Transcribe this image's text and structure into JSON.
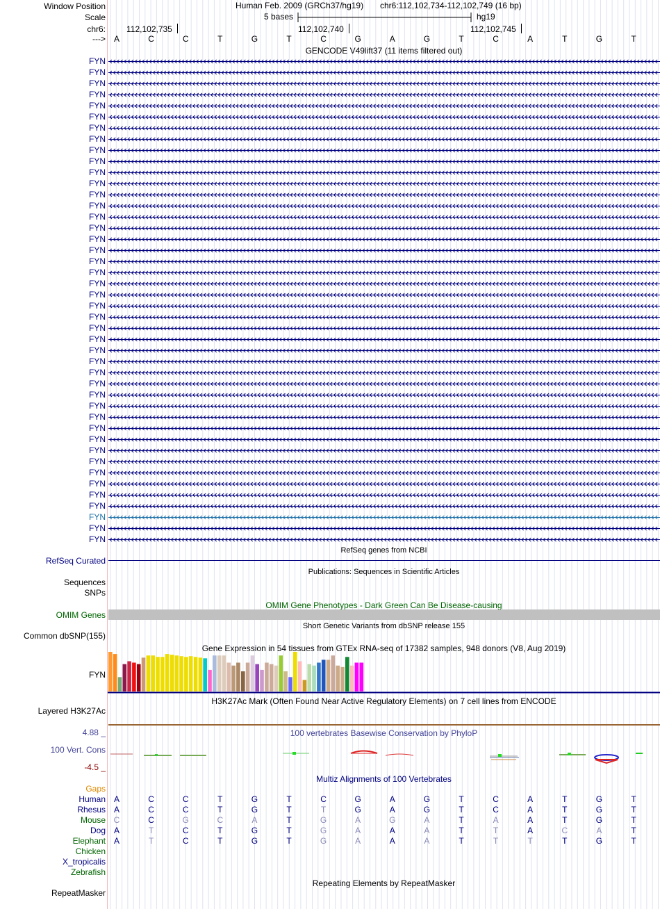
{
  "header": {
    "window_position_label": "Window Position",
    "scale_label": "Scale",
    "chrom_label": "chr6:",
    "strand_label": "--->",
    "assembly": "Human Feb. 2009 (GRCh37/hg19)",
    "position": "chr6:112,102,734-112,102,749 (16 bp)",
    "scale_text": "5 bases",
    "db": "hg19",
    "coords": [
      "112,102,735",
      "112,102,740",
      "112,102,745"
    ]
  },
  "sequence": [
    "A",
    "C",
    "C",
    "T",
    "G",
    "T",
    "C",
    "G",
    "A",
    "G",
    "T",
    "C",
    "A",
    "T",
    "G",
    "T"
  ],
  "gencode": {
    "title": "GENCODE V49lift37 (11 items filtered out)",
    "gene_label": "FYN",
    "count": 44,
    "highlight_index": 41
  },
  "refseq": {
    "title": "RefSeq genes from NCBI",
    "label": "RefSeq Curated"
  },
  "publications": {
    "title": "Publications: Sequences in Scientific Articles",
    "labels": [
      "Sequences",
      "SNPs"
    ]
  },
  "omim": {
    "title": "OMIM Gene Phenotypes - Dark Green Can Be Disease-causing",
    "label": "OMIM Genes",
    "bar_color": "#c0c0c0"
  },
  "snp": {
    "title": "Short Genetic Variants from dbSNP release 155",
    "label": "Common dbSNP(155)"
  },
  "gtex": {
    "title": "Gene Expression in 54 tissues from GTEx RNA-seq of 17382 samples, 948 donors (V8, Aug 2019)",
    "label": "FYN",
    "bars": [
      {
        "v": 55,
        "c": "#ff9933"
      },
      {
        "v": 52,
        "c": "#ff8c1a"
      },
      {
        "v": 20,
        "c": "#77aa77"
      },
      {
        "v": 38,
        "c": "#8b1a4a"
      },
      {
        "v": 42,
        "c": "#cc2244"
      },
      {
        "v": 40,
        "c": "#ee1111"
      },
      {
        "v": 38,
        "c": "#990011"
      },
      {
        "v": 47,
        "c": "#cc9977"
      },
      {
        "v": 50,
        "c": "#eedd00"
      },
      {
        "v": 50,
        "c": "#eedd00"
      },
      {
        "v": 48,
        "c": "#eedd00"
      },
      {
        "v": 48,
        "c": "#eedd00"
      },
      {
        "v": 52,
        "c": "#eedd00"
      },
      {
        "v": 51,
        "c": "#eedd00"
      },
      {
        "v": 50,
        "c": "#eedd00"
      },
      {
        "v": 49,
        "c": "#eedd00"
      },
      {
        "v": 48,
        "c": "#eedd00"
      },
      {
        "v": 49,
        "c": "#eedd00"
      },
      {
        "v": 48,
        "c": "#eedd00"
      },
      {
        "v": 47,
        "c": "#eedd00"
      },
      {
        "v": 46,
        "c": "#00cccc"
      },
      {
        "v": 30,
        "c": "#ff66cc"
      },
      {
        "v": 50,
        "c": "#aabbdd"
      },
      {
        "v": 50,
        "c": "#ddccbb"
      },
      {
        "v": 50,
        "c": "#ddccbb"
      },
      {
        "v": 40,
        "c": "#ddbbaa"
      },
      {
        "v": 36,
        "c": "#bb9977"
      },
      {
        "v": 40,
        "c": "#aa8866"
      },
      {
        "v": 28,
        "c": "#886644"
      },
      {
        "v": 40,
        "c": "#ccaa99"
      },
      {
        "v": 50,
        "c": "#ddccdd"
      },
      {
        "v": 38,
        "c": "#9944bb"
      },
      {
        "v": 30,
        "c": "#cc99cc"
      },
      {
        "v": 40,
        "c": "#ccaa99"
      },
      {
        "v": 38,
        "c": "#ccaa99"
      },
      {
        "v": 36,
        "c": "#ddccbb"
      },
      {
        "v": 50,
        "c": "#99cc33"
      },
      {
        "v": 28,
        "c": "#ccbb88"
      },
      {
        "v": 20,
        "c": "#6666ff"
      },
      {
        "v": 55,
        "c": "#eedd00"
      },
      {
        "v": 42,
        "c": "#ffbbbb"
      },
      {
        "v": 16,
        "c": "#cc9922"
      },
      {
        "v": 38,
        "c": "#bbddaa"
      },
      {
        "v": 36,
        "c": "#aaddbb"
      },
      {
        "v": 40,
        "c": "#3377cc"
      },
      {
        "v": 44,
        "c": "#2255bb"
      },
      {
        "v": 44,
        "c": "#ccaa88"
      },
      {
        "v": 50,
        "c": "#ccaa99"
      },
      {
        "v": 36,
        "c": "#ccaa88"
      },
      {
        "v": 34,
        "c": "#ccaa88"
      },
      {
        "v": 48,
        "c": "#118833"
      },
      {
        "v": 36,
        "c": "#ffbbbb"
      },
      {
        "v": 40,
        "c": "#ff00ff"
      },
      {
        "v": 40,
        "c": "#ff00ff"
      }
    ]
  },
  "h3k27ac": {
    "title": "H3K27Ac Mark (Often Found Near Active Regulatory Elements) on 7 cell lines from ENCODE",
    "label": "Layered H3K27Ac"
  },
  "phylop": {
    "title": "100 vertebrates Basewise Conservation by PhyloP",
    "label": "100 Vert. Cons",
    "max_label": "4.88 _",
    "min_label": "-4.5 _"
  },
  "multiz": {
    "title": "Multiz Alignments of 100 Vertebrates",
    "gaps_label": "Gaps",
    "species": [
      {
        "name": "Human",
        "bases": [
          "A",
          "C",
          "C",
          "T",
          "G",
          "T",
          "C",
          "G",
          "A",
          "G",
          "T",
          "C",
          "A",
          "T",
          "G",
          "T"
        ],
        "faint": []
      },
      {
        "name": "Rhesus",
        "bases": [
          "A",
          "C",
          "C",
          "T",
          "G",
          "T",
          "T",
          "G",
          "A",
          "G",
          "T",
          "C",
          "A",
          "T",
          "G",
          "T"
        ],
        "faint": [
          6
        ]
      },
      {
        "name": "Mouse",
        "bases": [
          "C",
          "C",
          "G",
          "C",
          "A",
          "T",
          "G",
          "A",
          "G",
          "A",
          "T",
          "A",
          "A",
          "T",
          "G",
          "T"
        ],
        "faint": [
          0,
          2,
          3,
          4,
          6,
          7,
          8,
          9,
          11
        ]
      },
      {
        "name": "Dog",
        "bases": [
          "A",
          "T",
          "C",
          "T",
          "G",
          "T",
          "G",
          "A",
          "A",
          "A",
          "T",
          "T",
          "A",
          "C",
          "A",
          "T"
        ],
        "faint": [
          1,
          6,
          7,
          9,
          11,
          13,
          14
        ]
      },
      {
        "name": "Elephant",
        "bases": [
          "A",
          "T",
          "C",
          "T",
          "G",
          "T",
          "G",
          "A",
          "A",
          "A",
          "T",
          "T",
          "T",
          "T",
          "G",
          "T"
        ],
        "faint": [
          1,
          6,
          7,
          9,
          11,
          12
        ]
      },
      {
        "name": "Chicken",
        "bases": [],
        "faint": []
      },
      {
        "name": "X_tropicalis",
        "bases": [],
        "faint": []
      },
      {
        "name": "Zebrafish",
        "bases": [],
        "faint": []
      }
    ]
  },
  "repeatmasker": {
    "title": "Repeating Elements by RepeatMasker",
    "label": "RepeatMasker"
  }
}
